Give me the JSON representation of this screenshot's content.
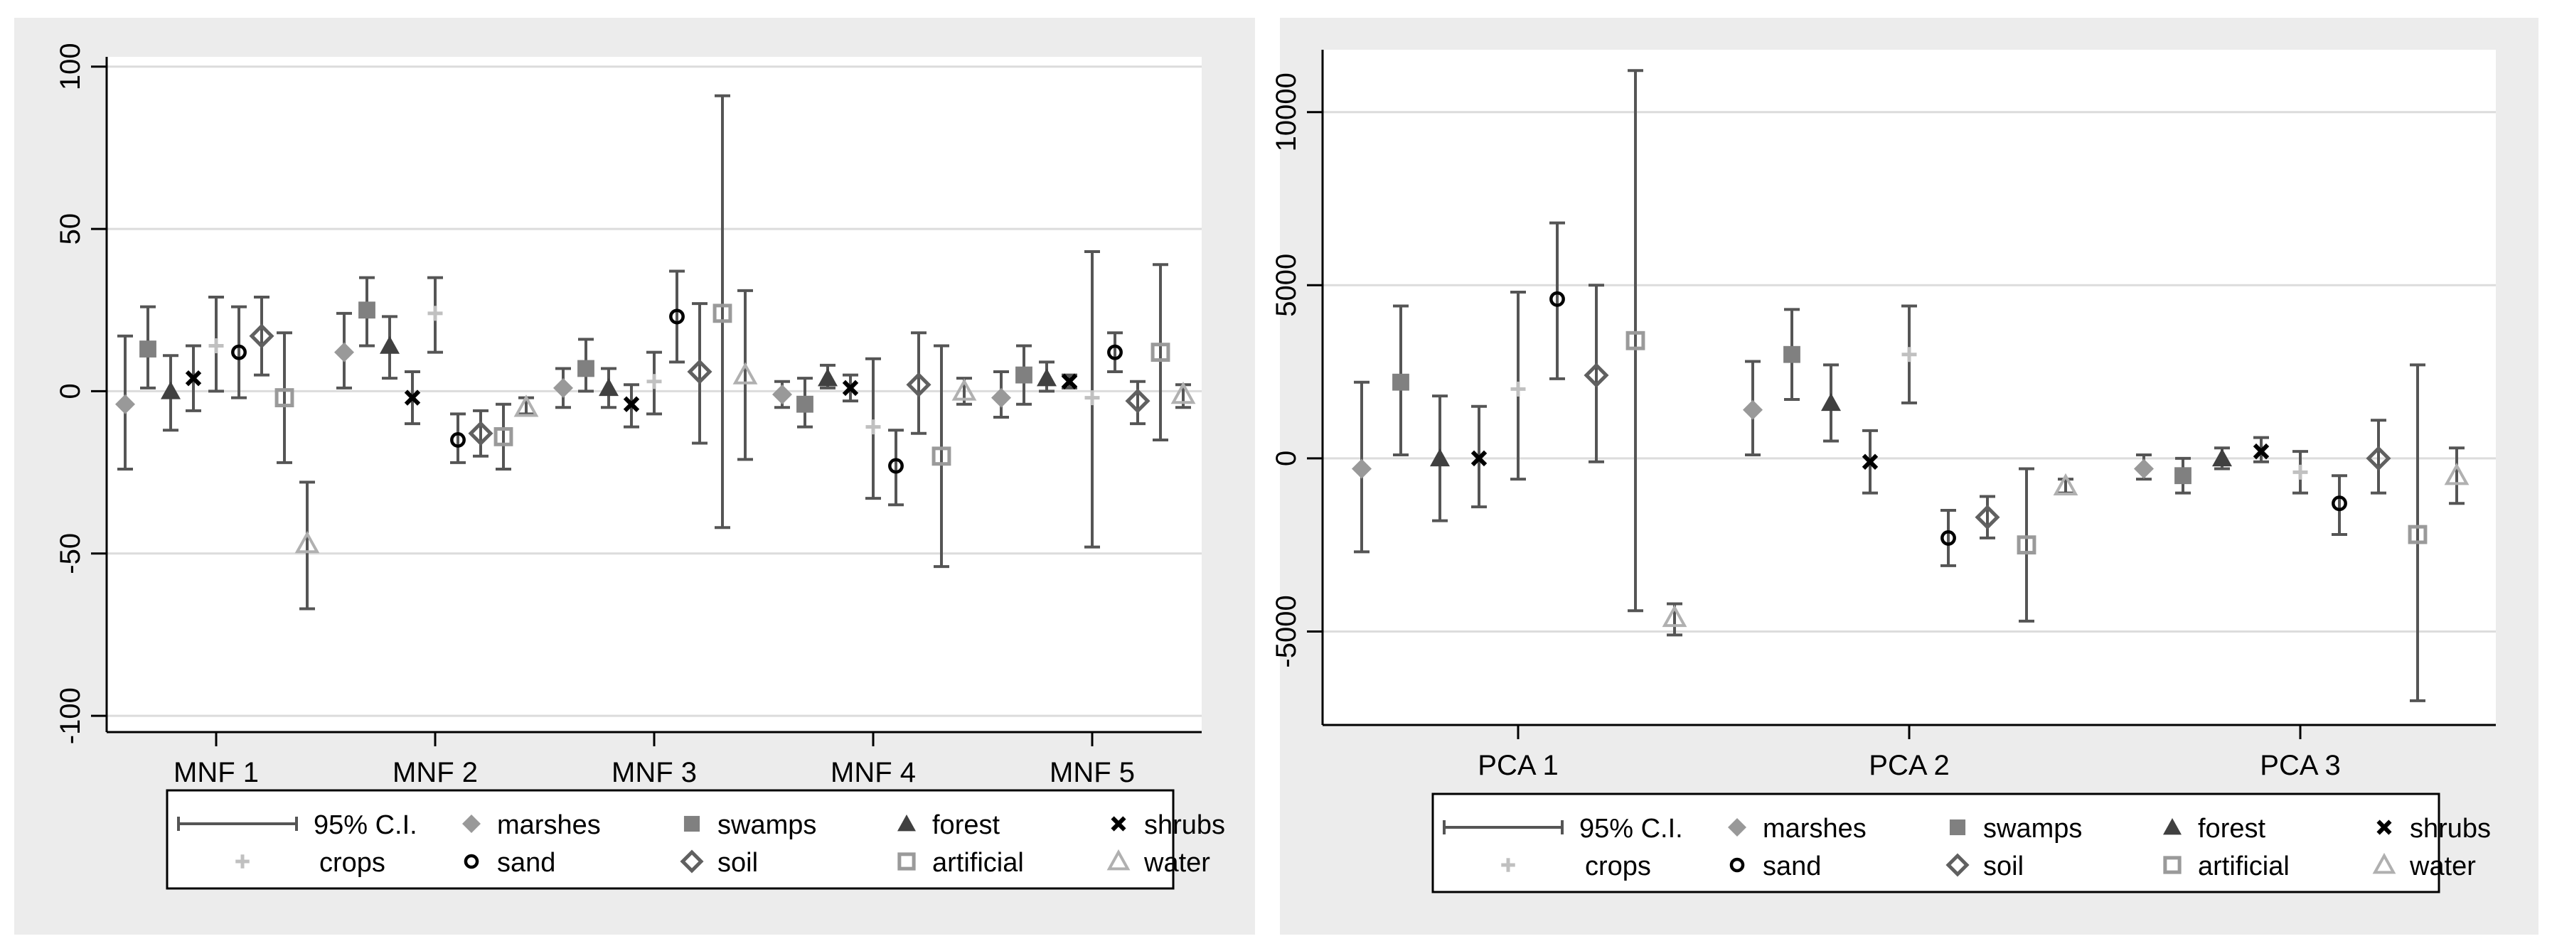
{
  "chart_data": [
    {
      "type": "errorbar",
      "panel": "left",
      "categories": [
        "MNF 1",
        "MNF 2",
        "MNF 3",
        "MNF 4",
        "MNF 5"
      ],
      "ylim": [
        -105,
        103
      ],
      "yticks": [
        -100,
        -50,
        0,
        50,
        100
      ],
      "ytick_labels": [
        "-100",
        "-50",
        "0",
        "50",
        "100"
      ],
      "ylabel": "",
      "xlabel": "",
      "grid": true,
      "legend": {
        "position": "bottom",
        "ci_label": "95% C.I.",
        "entries": [
          "marshes",
          "swamps",
          "forest",
          "shrubs",
          "crops",
          "sand",
          "soil",
          "artificial",
          "water"
        ]
      },
      "series": [
        {
          "name": "marshes",
          "values": [
            -4,
            12,
            1,
            -1,
            -2
          ],
          "ci": [
            [
              -24,
              17
            ],
            [
              1,
              24
            ],
            [
              -5,
              7
            ],
            [
              -5,
              3
            ],
            [
              -8,
              6
            ]
          ]
        },
        {
          "name": "swamps",
          "values": [
            13,
            25,
            7,
            -4,
            5
          ],
          "ci": [
            [
              1,
              26
            ],
            [
              14,
              35
            ],
            [
              0,
              16
            ],
            [
              -11,
              4
            ],
            [
              -4,
              14
            ]
          ]
        },
        {
          "name": "forest",
          "values": [
            0,
            14,
            1,
            4,
            4
          ],
          "ci": [
            [
              -12,
              11
            ],
            [
              4,
              23
            ],
            [
              -5,
              7
            ],
            [
              1,
              8
            ],
            [
              0,
              9
            ]
          ]
        },
        {
          "name": "shrubs",
          "values": [
            4,
            -2,
            -4,
            1,
            3
          ],
          "ci": [
            [
              -6,
              14
            ],
            [
              -10,
              6
            ],
            [
              -11,
              2
            ],
            [
              -3,
              5
            ],
            [
              1,
              5
            ]
          ]
        },
        {
          "name": "crops",
          "values": [
            14,
            24,
            3,
            -11,
            -2
          ],
          "ci": [
            [
              0,
              29
            ],
            [
              12,
              35
            ],
            [
              -7,
              12
            ],
            [
              -33,
              10
            ],
            [
              -48,
              43
            ]
          ]
        },
        {
          "name": "sand",
          "values": [
            12,
            -15,
            23,
            -23,
            12
          ],
          "ci": [
            [
              -2,
              26
            ],
            [
              -22,
              -7
            ],
            [
              9,
              37
            ],
            [
              -35,
              -12
            ],
            [
              6,
              18
            ]
          ]
        },
        {
          "name": "soil",
          "values": [
            17,
            -13,
            6,
            2,
            -3
          ],
          "ci": [
            [
              5,
              29
            ],
            [
              -20,
              -6
            ],
            [
              -16,
              27
            ],
            [
              -13,
              18
            ],
            [
              -10,
              3
            ]
          ]
        },
        {
          "name": "artificial",
          "values": [
            -2,
            -14,
            24,
            -20,
            12
          ],
          "ci": [
            [
              -22,
              18
            ],
            [
              -24,
              -4
            ],
            [
              -42,
              91
            ],
            [
              -54,
              14
            ],
            [
              -15,
              39
            ]
          ]
        },
        {
          "name": "water",
          "values": [
            -47,
            -5,
            5,
            0,
            -1
          ],
          "ci": [
            [
              -67,
              -28
            ],
            [
              -7,
              -2
            ],
            [
              -21,
              31
            ],
            [
              -4,
              4
            ],
            [
              -5,
              2
            ]
          ]
        }
      ]
    },
    {
      "type": "errorbar",
      "panel": "right",
      "categories": [
        "PCA 1",
        "PCA 2",
        "PCA 3"
      ],
      "ylim": [
        -7700,
        11800
      ],
      "yticks": [
        -5000,
        0,
        5000,
        10000
      ],
      "ytick_labels": [
        "-5000",
        "0",
        "5000",
        "10000"
      ],
      "ylabel": "",
      "xlabel": "",
      "grid": true,
      "legend": {
        "position": "bottom",
        "ci_label": "95% C.I.",
        "entries": [
          "marshes",
          "swamps",
          "forest",
          "shrubs",
          "crops",
          "sand",
          "soil",
          "artificial",
          "water"
        ]
      },
      "series": [
        {
          "name": "marshes",
          "values": [
            -300,
            1400,
            -300
          ],
          "ci": [
            [
              -2700,
              2200
            ],
            [
              100,
              2800
            ],
            [
              -600,
              100
            ]
          ]
        },
        {
          "name": "swamps",
          "values": [
            2200,
            3000,
            -500
          ],
          "ci": [
            [
              100,
              4400
            ],
            [
              1700,
              4300
            ],
            [
              -1000,
              0
            ]
          ]
        },
        {
          "name": "forest",
          "values": [
            0,
            1600,
            0
          ],
          "ci": [
            [
              -1800,
              1800
            ],
            [
              500,
              2700
            ],
            [
              -300,
              300
            ]
          ]
        },
        {
          "name": "shrubs",
          "values": [
            0,
            -100,
            200
          ],
          "ci": [
            [
              -1400,
              1500
            ],
            [
              -1000,
              800
            ],
            [
              -100,
              600
            ]
          ]
        },
        {
          "name": "crops",
          "values": [
            2000,
            3000,
            -400
          ],
          "ci": [
            [
              -600,
              4800
            ],
            [
              1600,
              4400
            ],
            [
              -1000,
              200
            ]
          ]
        },
        {
          "name": "sand",
          "values": [
            4600,
            -2300,
            -1300
          ],
          "ci": [
            [
              2300,
              6800
            ],
            [
              -3100,
              -1500
            ],
            [
              -2200,
              -500
            ]
          ]
        },
        {
          "name": "soil",
          "values": [
            2400,
            -1700,
            0
          ],
          "ci": [
            [
              -100,
              5000
            ],
            [
              -2300,
              -1100
            ],
            [
              -1000,
              1100
            ]
          ]
        },
        {
          "name": "artificial",
          "values": [
            3400,
            -2500,
            -2200
          ],
          "ci": [
            [
              -4400,
              11200
            ],
            [
              -4700,
              -300
            ],
            [
              -7000,
              2700
            ]
          ]
        },
        {
          "name": "water",
          "values": [
            -4600,
            -800,
            -500
          ],
          "ci": [
            [
              -5100,
              -4200
            ],
            [
              -1000,
              -600
            ],
            [
              -1300,
              300
            ]
          ]
        }
      ]
    }
  ],
  "colors": {
    "background_outer": "#ececec",
    "plot_background": "#ffffff",
    "ci_line": "#555555",
    "grid": "#dcdcdc",
    "axis": "#000000"
  },
  "series_styles": {
    "marshes": {
      "symbol": "diamond",
      "color": "#999999"
    },
    "swamps": {
      "symbol": "square",
      "color": "#808080"
    },
    "forest": {
      "symbol": "triangle",
      "color": "#404040"
    },
    "shrubs": {
      "symbol": "x",
      "color": "#000000"
    },
    "crops": {
      "symbol": "plus",
      "color": "#c0c0c0"
    },
    "sand": {
      "symbol": "circle-open",
      "color": "#000000"
    },
    "soil": {
      "symbol": "diamond-open",
      "color": "#606060"
    },
    "artificial": {
      "symbol": "square-open",
      "color": "#9a9a9a"
    },
    "water": {
      "symbol": "triangle-open",
      "color": "#b0b0b0"
    }
  }
}
